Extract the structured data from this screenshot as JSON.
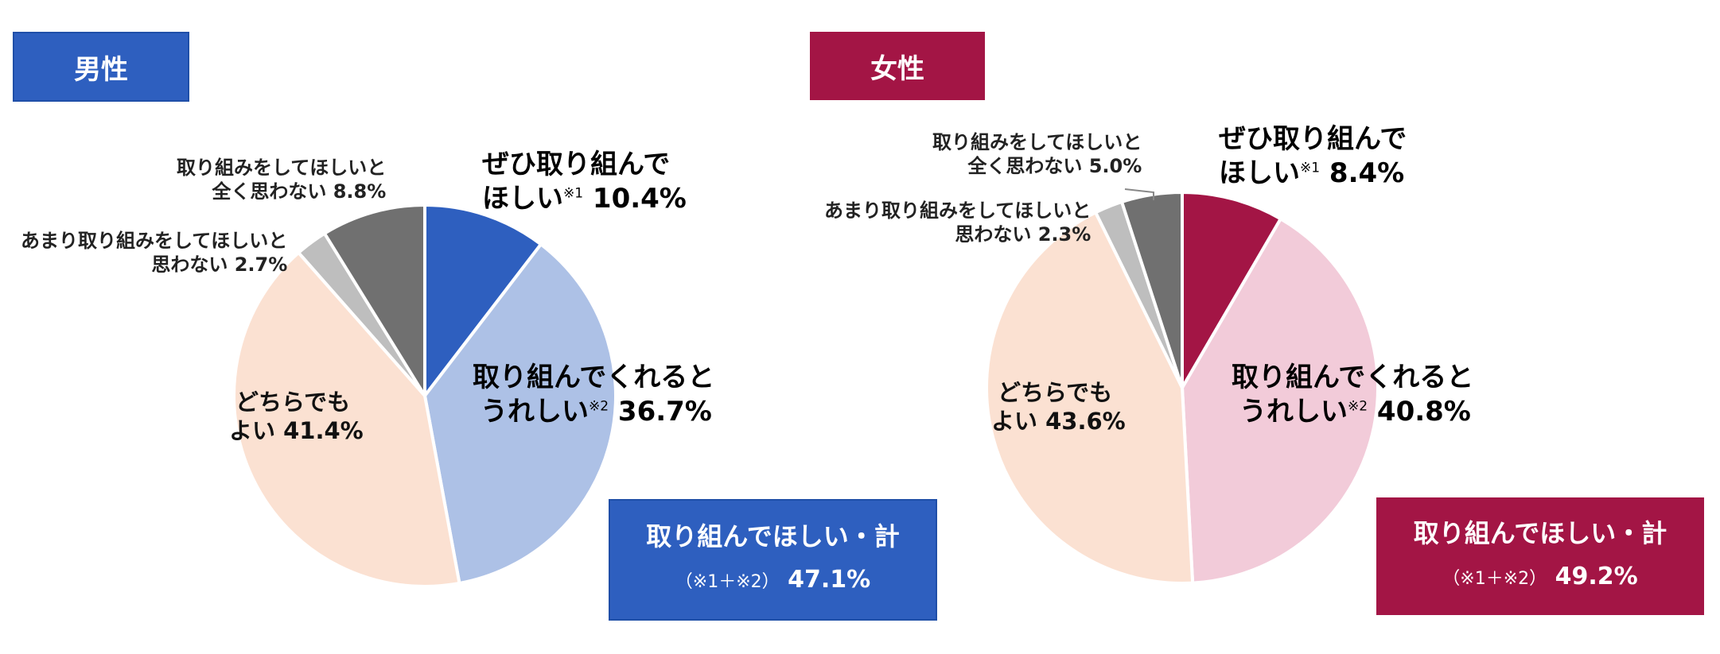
{
  "chart_data": [
    {
      "type": "pie",
      "gender_label": "男性",
      "colors": [
        "#2e5fbf",
        "#adc1e6",
        "#fbe1d2",
        "#bebebe",
        "#707070"
      ],
      "slices": [
        {
          "line1": "ぜひ取り組んで",
          "line2": "ほしい",
          "note": "※1",
          "value_text": "10.4%",
          "value": 10.4
        },
        {
          "line1": "取り組んでくれると",
          "line2": "うれしい",
          "note": "※2",
          "value_text": "36.7%",
          "value": 36.7
        },
        {
          "line1": "どちらでも",
          "line2": "よい",
          "note": "",
          "value_text": "41.4%",
          "value": 41.4
        },
        {
          "line1": "あまり取り組みをしてほしいと",
          "line2": "思わない",
          "note": "",
          "value_text": "2.7%",
          "value": 2.7
        },
        {
          "line1": "取り組みをしてほしいと",
          "line2": "全く思わない",
          "note": "",
          "value_text": "8.8%",
          "value": 8.8
        }
      ],
      "summary_title": "取り組んでほしい・計",
      "summary_paren_open": "（",
      "summary_note1": "※1",
      "summary_plus": "＋",
      "summary_note2": "※2",
      "summary_paren_close": "）",
      "summary_value": "47.1%"
    },
    {
      "type": "pie",
      "gender_label": "女性",
      "colors": [
        "#a31545",
        "#f2cbd9",
        "#fbe1d2",
        "#bebebe",
        "#707070"
      ],
      "slices": [
        {
          "line1": "ぜひ取り組んで",
          "line2": "ほしい",
          "note": "※1",
          "value_text": "8.4%",
          "value": 8.4
        },
        {
          "line1": "取り組んでくれると",
          "line2": "うれしい",
          "note": "※2",
          "value_text": "40.8%",
          "value": 40.8
        },
        {
          "line1": "どちらでも",
          "line2": "よい",
          "note": "",
          "value_text": "43.6%",
          "value": 43.6
        },
        {
          "line1": "あまり取り組みをしてほしいと",
          "line2": "思わない",
          "note": "",
          "value_text": "2.3%",
          "value": 2.3
        },
        {
          "line1": "取り組みをしてほしいと",
          "line2": "全く思わない",
          "note": "",
          "value_text": "5.0%",
          "value": 5.0
        }
      ],
      "summary_title": "取り組んでほしい・計",
      "summary_paren_open": "（",
      "summary_note1": "※1",
      "summary_plus": "＋",
      "summary_note2": "※2",
      "summary_paren_close": "）",
      "summary_value": "49.2%"
    }
  ]
}
